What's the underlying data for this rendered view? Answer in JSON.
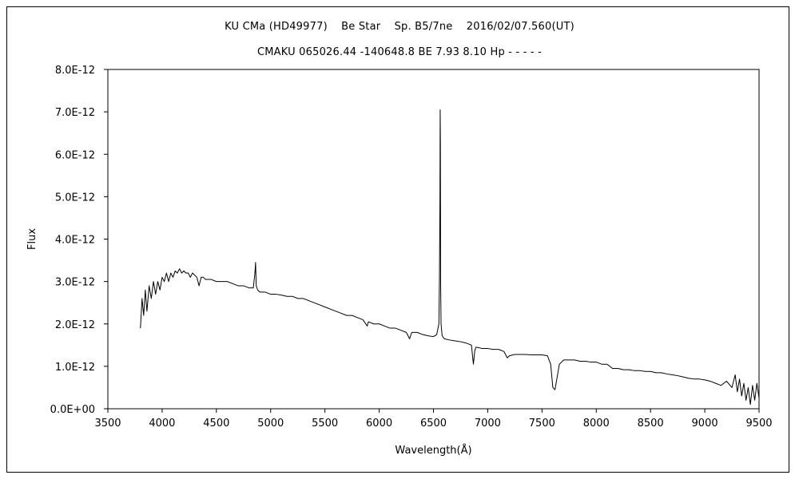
{
  "chart_data": {
    "type": "line",
    "title": "KU CMa (HD49977)    Be Star    Sp. B5/7ne    2016/02/07.560(UT)",
    "subtitle": "CMAKU 065026.44 -140648.8 BE 7.93 8.10 Hp - - - - -",
    "xlabel": "Wavelength(Å)",
    "ylabel": "Flux",
    "xlim": [
      3500,
      9500
    ],
    "ylim": [
      0,
      8e-12
    ],
    "x_ticks": [
      3500,
      4000,
      4500,
      5000,
      5500,
      6000,
      6500,
      7000,
      7500,
      8000,
      8500,
      9000,
      9500
    ],
    "y_ticks": [
      0,
      1e-12,
      2e-12,
      3e-12,
      4e-12,
      5e-12,
      6e-12,
      7e-12,
      8e-12
    ],
    "x_tick_labels": [
      "3500",
      "4000",
      "4500",
      "5000",
      "5500",
      "6000",
      "6500",
      "7000",
      "7500",
      "8000",
      "8500",
      "9000",
      "9500"
    ],
    "y_tick_labels": [
      "0.0E+00",
      "1.0E-12",
      "2.0E-12",
      "3.0E-12",
      "4.0E-12",
      "5.0E-12",
      "6.0E-12",
      "7.0E-12",
      "8.0E-12"
    ],
    "grid": false,
    "legend": false,
    "series": [
      {
        "color": "#000000",
        "x": [
          3800,
          3815,
          3830,
          3845,
          3860,
          3880,
          3900,
          3920,
          3940,
          3960,
          3980,
          4000,
          4020,
          4040,
          4060,
          4080,
          4100,
          4120,
          4140,
          4160,
          4180,
          4200,
          4220,
          4240,
          4260,
          4280,
          4300,
          4320,
          4340,
          4360,
          4380,
          4400,
          4450,
          4500,
          4550,
          4600,
          4650,
          4700,
          4750,
          4800,
          4840,
          4855,
          4861,
          4867,
          4880,
          4900,
          4950,
          5000,
          5050,
          5100,
          5150,
          5200,
          5250,
          5300,
          5350,
          5400,
          5450,
          5500,
          5550,
          5600,
          5650,
          5700,
          5750,
          5800,
          5850,
          5890,
          5900,
          5950,
          6000,
          6050,
          6100,
          6150,
          6200,
          6250,
          6280,
          6300,
          6350,
          6400,
          6450,
          6500,
          6530,
          6550,
          6555,
          6560,
          6562,
          6564,
          6566,
          6570,
          6580,
          6600,
          6650,
          6700,
          6750,
          6800,
          6850,
          6868,
          6880,
          6890,
          6900,
          6950,
          7000,
          7050,
          7100,
          7150,
          7180,
          7200,
          7250,
          7300,
          7350,
          7400,
          7450,
          7500,
          7550,
          7580,
          7600,
          7620,
          7640,
          7660,
          7680,
          7700,
          7750,
          7800,
          7850,
          7900,
          7950,
          8000,
          8050,
          8100,
          8150,
          8200,
          8250,
          8300,
          8350,
          8400,
          8450,
          8500,
          8550,
          8600,
          8650,
          8700,
          8750,
          8800,
          8850,
          8900,
          8950,
          9000,
          9050,
          9100,
          9150,
          9200,
          9250,
          9280,
          9300,
          9320,
          9340,
          9360,
          9380,
          9400,
          9420,
          9440,
          9460,
          9480,
          9500
        ],
        "y": [
          1.9e-12,
          2.6e-12,
          2.2e-12,
          2.8e-12,
          2.3e-12,
          2.9e-12,
          2.6e-12,
          3e-12,
          2.7e-12,
          3e-12,
          2.8e-12,
          3.1e-12,
          3e-12,
          3.2e-12,
          3e-12,
          3.2e-12,
          3.1e-12,
          3.25e-12,
          3.2e-12,
          3.3e-12,
          3.2e-12,
          3.25e-12,
          3.2e-12,
          3.2e-12,
          3.1e-12,
          3.2e-12,
          3.15e-12,
          3.1e-12,
          2.9e-12,
          3.1e-12,
          3.1e-12,
          3.05e-12,
          3.05e-12,
          3e-12,
          3e-12,
          3e-12,
          2.95e-12,
          2.9e-12,
          2.9e-12,
          2.85e-12,
          2.85e-12,
          3.2e-12,
          3.45e-12,
          2.9e-12,
          2.8e-12,
          2.75e-12,
          2.75e-12,
          2.7e-12,
          2.7e-12,
          2.68e-12,
          2.65e-12,
          2.65e-12,
          2.6e-12,
          2.6e-12,
          2.55e-12,
          2.5e-12,
          2.45e-12,
          2.4e-12,
          2.35e-12,
          2.3e-12,
          2.25e-12,
          2.2e-12,
          2.2e-12,
          2.15e-12,
          2.1e-12,
          1.95e-12,
          2.05e-12,
          2e-12,
          2e-12,
          1.95e-12,
          1.9e-12,
          1.9e-12,
          1.85e-12,
          1.8e-12,
          1.65e-12,
          1.8e-12,
          1.8e-12,
          1.75e-12,
          1.72e-12,
          1.7e-12,
          1.75e-12,
          2e-12,
          3e-12,
          5e-12,
          7.05e-12,
          6.3e-12,
          3e-12,
          2e-12,
          1.72e-12,
          1.65e-12,
          1.62e-12,
          1.6e-12,
          1.58e-12,
          1.55e-12,
          1.5e-12,
          1.05e-12,
          1.35e-12,
          1.45e-12,
          1.45e-12,
          1.42e-12,
          1.42e-12,
          1.4e-12,
          1.4e-12,
          1.35e-12,
          1.2e-12,
          1.25e-12,
          1.28e-12,
          1.28e-12,
          1.28e-12,
          1.27e-12,
          1.27e-12,
          1.27e-12,
          1.25e-12,
          1.05e-12,
          5e-13,
          4.5e-13,
          7.5e-13,
          1.05e-12,
          1.1e-12,
          1.15e-12,
          1.15e-12,
          1.15e-12,
          1.12e-12,
          1.12e-12,
          1.1e-12,
          1.1e-12,
          1.05e-12,
          1.05e-12,
          9.5e-13,
          9.5e-13,
          9.2e-13,
          9.2e-13,
          9e-13,
          9e-13,
          8.8e-13,
          8.8e-13,
          8.5e-13,
          8.5e-13,
          8.2e-13,
          8e-13,
          7.8e-13,
          7.5e-13,
          7.2e-13,
          7e-13,
          7e-13,
          6.8e-13,
          6.5e-13,
          6e-13,
          5.5e-13,
          6.5e-13,
          5e-13,
          8e-13,
          4e-13,
          7e-13,
          3e-13,
          6e-13,
          2e-13,
          5e-13,
          1e-13,
          5.5e-13,
          2e-13,
          6e-13,
          2.5e-13
        ]
      }
    ]
  }
}
